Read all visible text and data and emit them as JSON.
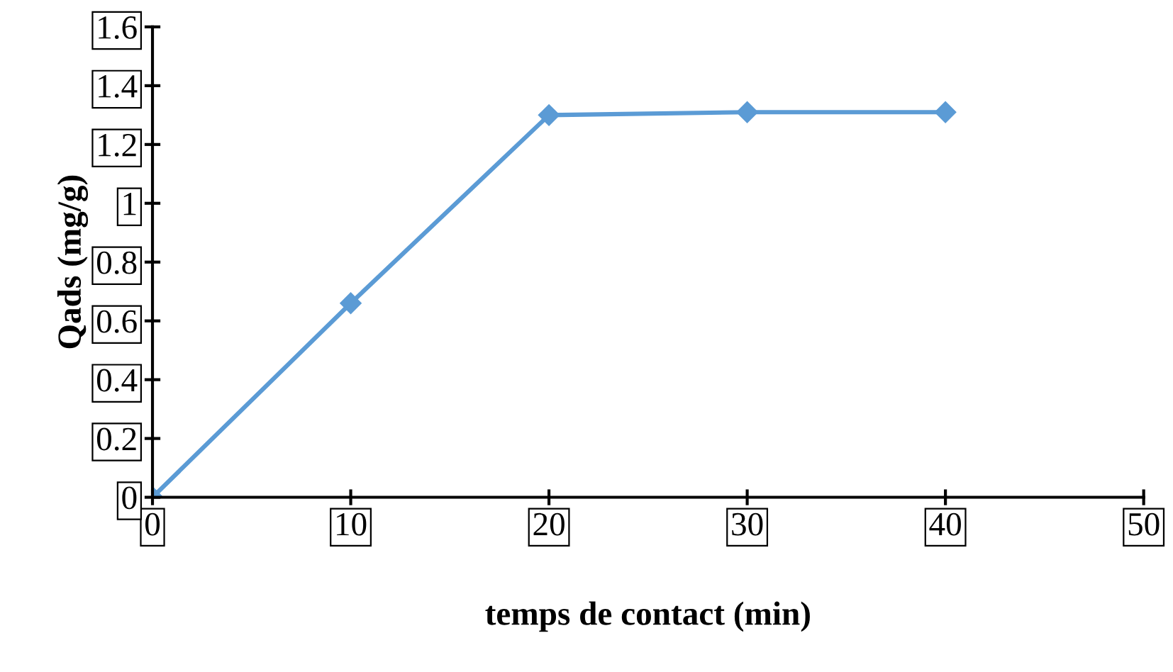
{
  "chart_data": {
    "type": "line",
    "xlabel": "temps de contact (min)",
    "ylabel": "Qads (mg/g)",
    "x": [
      0,
      10,
      20,
      30,
      40
    ],
    "series": [
      {
        "color": "#5b9bd5",
        "values": [
          0,
          0.66,
          1.3,
          1.31,
          1.31
        ]
      }
    ],
    "xlim": [
      0,
      50
    ],
    "xticks": [
      0,
      10,
      20,
      30,
      40,
      50
    ],
    "ylim": [
      0,
      1.6
    ],
    "yticks": [
      0,
      0.2,
      0.4,
      0.6,
      0.8,
      1,
      1.2,
      1.4,
      1.6
    ],
    "grid": false,
    "legend": false,
    "marker": "diamond",
    "line_style": "solid"
  }
}
